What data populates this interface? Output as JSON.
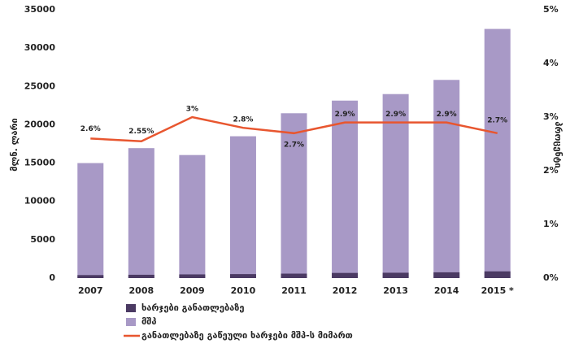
{
  "chart_data": {
    "type": "bar",
    "y_label": "მლნ. ლარი",
    "y2_label": "პროცენტი",
    "categories": [
      "2007",
      "2008",
      "2009",
      "2010",
      "2011",
      "2012",
      "2013",
      "2014",
      "2015 *"
    ],
    "series": [
      {
        "name": "ხარჯები განათლებაზე",
        "color": "#4b3a63",
        "type": "bar",
        "values": [
          390,
          432,
          481,
          518,
          580,
          671,
          696,
          750,
          877
        ]
      },
      {
        "name": "მშპ",
        "color": "#a899c6",
        "type": "bar",
        "values": [
          15000,
          16950,
          16050,
          18500,
          21500,
          23150,
          24000,
          25850,
          32500
        ]
      },
      {
        "name": "განათლებაზე გაწეული ხარჯები მშპ-ს მიმართ",
        "color": "#e8562f",
        "type": "line",
        "axis": "y2",
        "values": [
          2.6,
          2.55,
          3,
          2.8,
          2.7,
          2.9,
          2.9,
          2.9,
          2.7
        ],
        "value_labels": [
          "2.6%",
          "2.55%",
          "3%",
          "2.8%",
          "2.7%",
          "2.9%",
          "2.9%",
          "2.9%",
          "2.7%"
        ]
      }
    ],
    "ylim": [
      0,
      35000
    ],
    "yticks": [
      0,
      5000,
      10000,
      15000,
      20000,
      25000,
      30000,
      35000
    ],
    "y2lim": [
      0,
      5
    ],
    "y2ticks": [
      {
        "value": 0,
        "label": "0%"
      },
      {
        "value": 1,
        "label": "1%"
      },
      {
        "value": 2,
        "label": "2%"
      },
      {
        "value": 3,
        "label": "3%"
      },
      {
        "value": 4,
        "label": "4%"
      },
      {
        "value": 5,
        "label": "5%"
      }
    ]
  }
}
